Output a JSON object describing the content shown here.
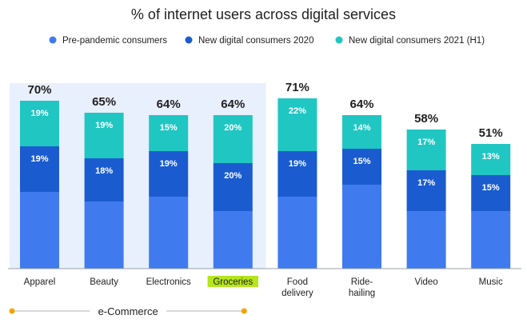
{
  "chart_data": {
    "type": "bar",
    "stacked": true,
    "title": "% of internet users across digital services",
    "categories": [
      "Apparel",
      "Beauty",
      "Electronics",
      "Groceries",
      "Food delivery",
      "Ride-hailing",
      "Video",
      "Music"
    ],
    "category_lines": [
      [
        "Apparel"
      ],
      [
        "Beauty"
      ],
      [
        "Electronics"
      ],
      [
        "Groceries"
      ],
      [
        "Food",
        "delivery"
      ],
      [
        "Ride-",
        "hailing"
      ],
      [
        "Video"
      ],
      [
        "Music"
      ]
    ],
    "highlighted_category": "Groceries",
    "series": [
      {
        "name": "Pre-pandemic consumers",
        "values": [
          32,
          28,
          30,
          24,
          30,
          35,
          24,
          24
        ],
        "color": "#3f7bef",
        "show_labels": false
      },
      {
        "name": "New digital consumers 2020",
        "values": [
          19,
          18,
          19,
          20,
          19,
          15,
          17,
          15
        ],
        "color": "#1a5ccf",
        "show_labels": true
      },
      {
        "name": "New digital consumers 2021 (H1)",
        "values": [
          19,
          19,
          15,
          20,
          22,
          14,
          17,
          13
        ],
        "color": "#20c6c2",
        "show_labels": true
      }
    ],
    "totals": [
      70,
      65,
      64,
      64,
      71,
      64,
      58,
      51
    ],
    "ylim": [
      0,
      80
    ],
    "grid": false,
    "legend_position": "top-center",
    "group_annotation": {
      "label": "e-Commerce",
      "categories": [
        "Apparel",
        "Beauty",
        "Electronics",
        "Groceries"
      ]
    },
    "colors": {
      "highlight_band": "#e8effd",
      "highlight_label": "#b5e51d",
      "accent_dot": "#f4a300",
      "axis": "#9aa0a6",
      "text": "#1f1f1f"
    }
  }
}
